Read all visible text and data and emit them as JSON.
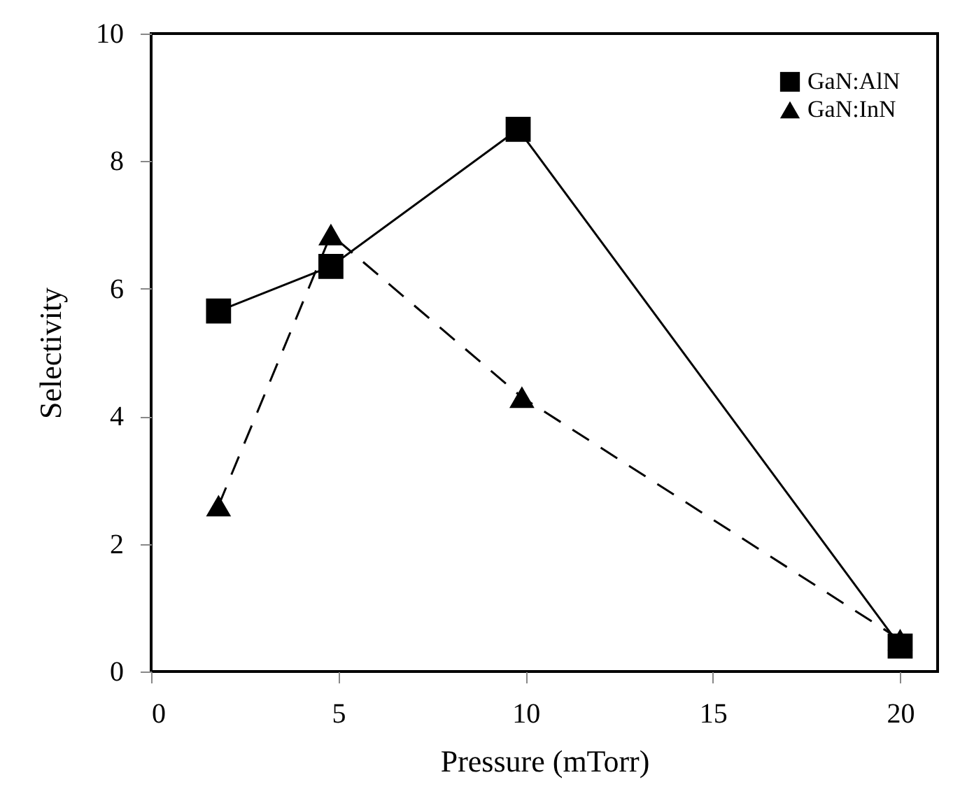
{
  "chart_data": {
    "type": "line",
    "xlabel": "Pressure (mTorr)",
    "ylabel": "Selectivity",
    "xlim": [
      0,
      21
    ],
    "xticks": [
      0,
      5,
      10,
      15,
      20
    ],
    "ylim": [
      0,
      10
    ],
    "yticks": [
      0,
      2,
      4,
      6,
      8,
      10
    ],
    "grid": false,
    "legend": "top right",
    "series": [
      {
        "name": "GaN:AlN",
        "color": "#000000",
        "x": [
          1.8,
          4.8,
          9.8,
          20
        ],
        "values": [
          5.65,
          6.35,
          8.5,
          0.4
        ],
        "marker": "square",
        "line_style": "solid"
      },
      {
        "name": "GaN:InN",
        "color": "#000000",
        "x": [
          1.8,
          4.8,
          9.9,
          20
        ],
        "values": [
          2.6,
          6.85,
          4.3,
          0.5
        ],
        "marker": "triangle",
        "line_style": "dashed"
      }
    ]
  }
}
